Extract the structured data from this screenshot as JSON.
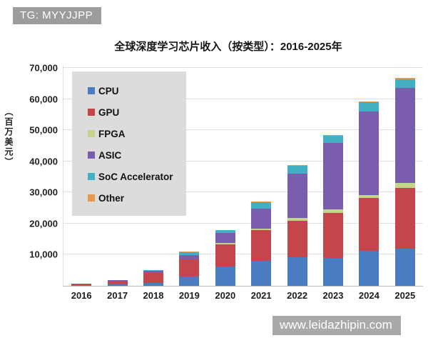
{
  "badge": {
    "text": "TG: MYYJJPP"
  },
  "watermark": {
    "text": "www.leidazhipin.com"
  },
  "chart_data": {
    "type": "bar",
    "stacked": true,
    "title": "全球深度学习芯片收入（按类型）：2016-2025年",
    "xlabel": "",
    "ylabel": "（百万美元）",
    "categories": [
      "2016",
      "2017",
      "2018",
      "2019",
      "2020",
      "2021",
      "2022",
      "2023",
      "2024",
      "2025"
    ],
    "series": [
      {
        "name": "CPU",
        "color": "#4a7cc2",
        "values": [
          150,
          350,
          1000,
          3000,
          6100,
          8000,
          9200,
          8900,
          11200,
          11900
        ]
      },
      {
        "name": "GPU",
        "color": "#c4454c",
        "values": [
          350,
          1100,
          3100,
          5400,
          7300,
          9900,
          11600,
          14600,
          17000,
          19600
        ]
      },
      {
        "name": "FPGA",
        "color": "#c3d58b",
        "values": [
          20,
          50,
          120,
          150,
          400,
          400,
          900,
          1100,
          1000,
          1500
        ]
      },
      {
        "name": "ASIC",
        "color": "#7a5ead",
        "values": [
          100,
          250,
          650,
          1350,
          3100,
          6500,
          14400,
          21400,
          26800,
          30500
        ]
      },
      {
        "name": "SoC Accelerator",
        "color": "#41b0c2",
        "values": [
          30,
          80,
          180,
          1000,
          1000,
          2100,
          2500,
          2300,
          2900,
          2800
        ]
      },
      {
        "name": "Other",
        "color": "#e59b4f",
        "values": [
          10,
          20,
          50,
          50,
          100,
          100,
          200,
          200,
          300,
          400
        ]
      }
    ],
    "totals": [
      660,
      1850,
      5100,
      10950,
      18000,
      27000,
      38800,
      48500,
      59200,
      66700
    ],
    "ylim": [
      0,
      70700
    ],
    "yticks": [
      {
        "value": 10000,
        "label": "10,000"
      },
      {
        "value": 20000,
        "label": "20,000"
      },
      {
        "value": 30000,
        "label": "30,000"
      },
      {
        "value": 40000,
        "label": "40,000"
      },
      {
        "value": 50000,
        "label": "50,000"
      },
      {
        "value": 60000,
        "label": "60,000"
      },
      {
        "value": 70000,
        "label": "70,000"
      }
    ],
    "grid": "horizontal",
    "legend_position": "upper-left"
  }
}
